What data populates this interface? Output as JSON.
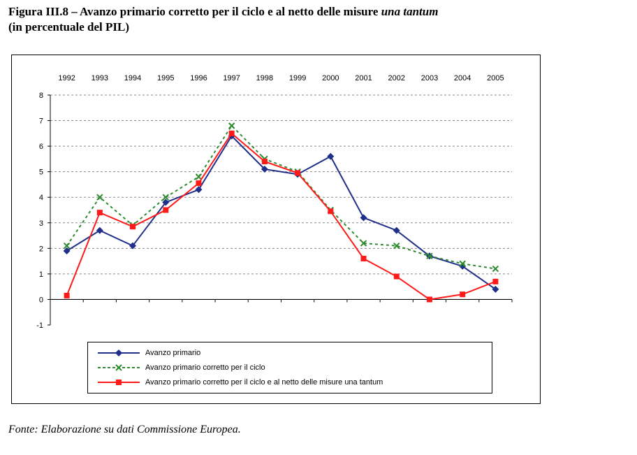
{
  "title": {
    "line1_main": "Figura III.8 – Avanzo primario corretto per il ciclo e al netto delle misure ",
    "line1_italic": "una tantum",
    "line2": "(in percentuale del PIL)"
  },
  "source": "Fonte: Elaborazione su dati Commissione Europea.",
  "colors": {
    "series1": "#1f2f8a",
    "series2": "#2e8b2e",
    "series3": "#ff1a1a"
  },
  "chart_data": {
    "type": "line",
    "x": [
      "1992",
      "1993",
      "1994",
      "1995",
      "1996",
      "1997",
      "1998",
      "1999",
      "2000",
      "2001",
      "2002",
      "2003",
      "2004",
      "2005"
    ],
    "ylim": [
      -1,
      8
    ],
    "yticks": [
      -1,
      0,
      1,
      2,
      3,
      4,
      5,
      6,
      7,
      8
    ],
    "grid": true,
    "legend_position": "bottom",
    "series": [
      {
        "name": "Avanzo primario",
        "marker": "diamond",
        "line": "solid",
        "values": [
          1.9,
          2.7,
          2.1,
          3.8,
          4.3,
          6.4,
          5.1,
          4.9,
          5.6,
          3.2,
          2.7,
          1.7,
          1.3,
          0.4
        ]
      },
      {
        "name": "Avanzo primario corretto per il ciclo",
        "marker": "x",
        "line": "dashed",
        "values": [
          2.1,
          4.0,
          2.9,
          4.0,
          4.8,
          6.8,
          5.5,
          5.0,
          3.5,
          2.2,
          2.1,
          1.7,
          1.4,
          1.2
        ]
      },
      {
        "name": "Avanzo primario corretto per il ciclo e al netto delle misure una tantum",
        "marker": "square",
        "line": "solid",
        "values": [
          0.15,
          3.4,
          2.85,
          3.5,
          4.55,
          6.5,
          5.4,
          4.95,
          3.45,
          1.6,
          0.9,
          0.0,
          0.2,
          0.7
        ]
      }
    ]
  }
}
